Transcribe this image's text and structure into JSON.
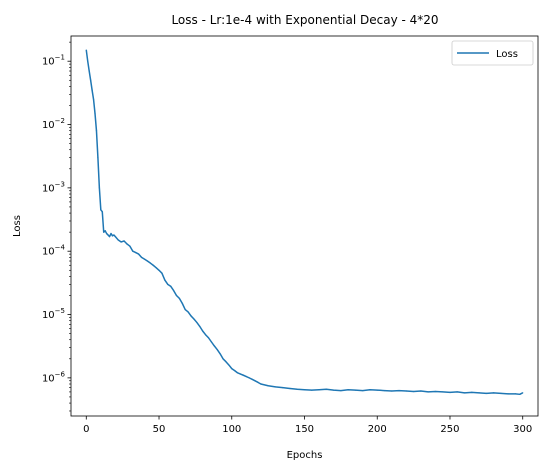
{
  "chart_data": {
    "type": "line",
    "title": "Loss - Lr:1e-4 with Exponential Decay - 4*20",
    "xlabel": "Epochs",
    "ylabel": "Loss",
    "xlim": [
      -10.5,
      310.5
    ],
    "ylim": [
      2.5e-07,
      0.25
    ],
    "yscale": "log",
    "grid": false,
    "legend_position": "upper right",
    "x_ticks": [
      {
        "value": 0,
        "label": "0"
      },
      {
        "value": 50,
        "label": "50"
      },
      {
        "value": 100,
        "label": "100"
      },
      {
        "value": 150,
        "label": "150"
      },
      {
        "value": 200,
        "label": "200"
      },
      {
        "value": 250,
        "label": "250"
      },
      {
        "value": 300,
        "label": "300"
      }
    ],
    "y_ticks": [
      {
        "value": 1e-06,
        "base": "10",
        "exp": "−6"
      },
      {
        "value": 1e-05,
        "base": "10",
        "exp": "−5"
      },
      {
        "value": 0.0001,
        "base": "10",
        "exp": "−4"
      },
      {
        "value": 0.001,
        "base": "10",
        "exp": "−3"
      },
      {
        "value": 0.01,
        "base": "10",
        "exp": "−2"
      },
      {
        "value": 0.1,
        "base": "10",
        "exp": "−1"
      }
    ],
    "series": [
      {
        "name": "Loss",
        "color": "#1f77b4",
        "x": [
          0,
          1,
          2,
          3,
          4,
          5,
          6,
          7,
          8,
          9,
          10,
          11,
          12,
          13,
          14,
          15,
          16,
          17,
          18,
          19,
          20,
          22,
          24,
          26,
          28,
          30,
          32,
          34,
          36,
          38,
          40,
          42,
          44,
          46,
          48,
          50,
          52,
          54,
          56,
          58,
          60,
          62,
          64,
          66,
          68,
          70,
          72,
          74,
          76,
          78,
          80,
          82,
          84,
          86,
          88,
          90,
          92,
          94,
          96,
          98,
          100,
          102,
          104,
          106,
          108,
          110,
          112,
          114,
          116,
          118,
          120,
          125,
          130,
          135,
          140,
          145,
          150,
          155,
          160,
          165,
          170,
          175,
          180,
          185,
          190,
          195,
          200,
          205,
          210,
          215,
          220,
          225,
          230,
          235,
          240,
          245,
          250,
          255,
          260,
          265,
          270,
          275,
          280,
          285,
          290,
          295,
          298,
          300
        ],
        "y": [
          0.15,
          0.1,
          0.07,
          0.05,
          0.035,
          0.025,
          0.015,
          0.008,
          0.003,
          0.001,
          0.00045,
          0.00042,
          0.0002,
          0.00021,
          0.00019,
          0.00018,
          0.00017,
          0.00019,
          0.000175,
          0.00018,
          0.00017,
          0.00015,
          0.00014,
          0.000145,
          0.00013,
          0.00012,
          0.0001,
          9.5e-05,
          9e-05,
          8e-05,
          7.5e-05,
          7e-05,
          6.5e-05,
          6e-05,
          5.5e-05,
          5e-05,
          4.5e-05,
          3.5e-05,
          3e-05,
          2.8e-05,
          2.4e-05,
          2e-05,
          1.8e-05,
          1.5e-05,
          1.2e-05,
          1.1e-05,
          9.5e-06,
          8.5e-06,
          7.5e-06,
          6.5e-06,
          5.5e-06,
          4.8e-06,
          4.3e-06,
          3.7e-06,
          3.2e-06,
          2.8e-06,
          2.4e-06,
          2e-06,
          1.8e-06,
          1.6e-06,
          1.4e-06,
          1.3e-06,
          1.2e-06,
          1.15e-06,
          1.1e-06,
          1.05e-06,
          1e-06,
          9.5e-07,
          9e-07,
          8.5e-07,
          8e-07,
          7.5e-07,
          7.2e-07,
          7e-07,
          6.8e-07,
          6.6e-07,
          6.5e-07,
          6.4e-07,
          6.5e-07,
          6.6e-07,
          6.4e-07,
          6.3e-07,
          6.5e-07,
          6.4e-07,
          6.3e-07,
          6.5e-07,
          6.4e-07,
          6.3e-07,
          6.2e-07,
          6.3e-07,
          6.2e-07,
          6.1e-07,
          6.2e-07,
          6e-07,
          6.1e-07,
          6e-07,
          5.9e-07,
          6e-07,
          5.8e-07,
          5.9e-07,
          5.8e-07,
          5.7e-07,
          5.8e-07,
          5.7e-07,
          5.6e-07,
          5.6e-07,
          5.5e-07,
          5.8e-07
        ]
      }
    ]
  }
}
